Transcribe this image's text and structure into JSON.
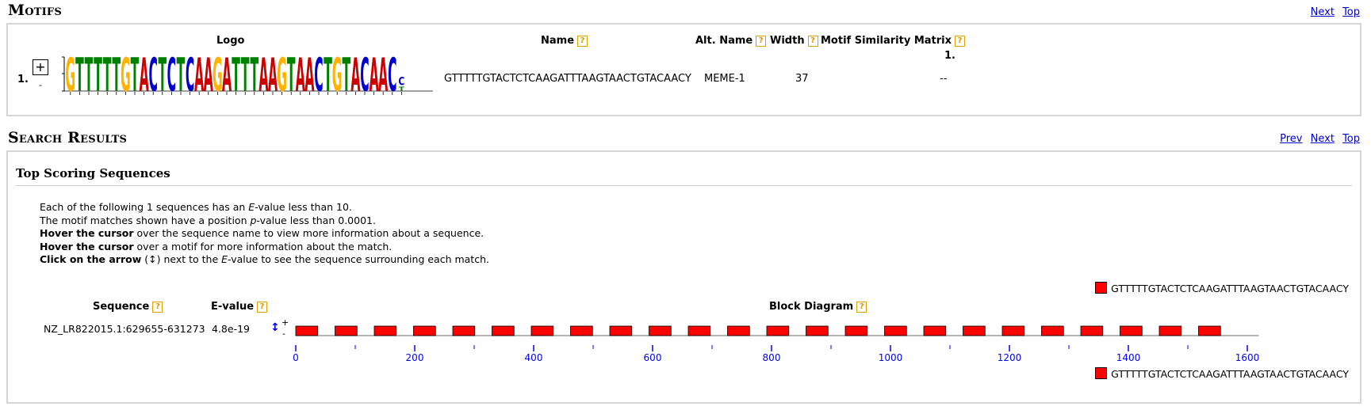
{
  "motifs": {
    "title": "Motifs",
    "nav": {
      "next": "Next",
      "top": "Top"
    },
    "headers": {
      "logo": "Logo",
      "name": "Name",
      "alt_name": "Alt. Name",
      "width": "Width",
      "similarity": "Motif Similarity Matrix",
      "similarity_col": "1."
    },
    "rows": [
      {
        "index": "1.",
        "expand_symbol": "+",
        "sub_symbol": "-",
        "logo_letters": "GTTTTTGTACTCTCAAGATTTAAGTAACTGTACAAC",
        "logo_last_top": "C",
        "logo_last_bottom": "T",
        "name": "GTTTTTGTACTCTCAAGATTTAAGTAACTGTACAACY",
        "alt_name": "MEME-1",
        "width": "37",
        "similarity": "--"
      }
    ]
  },
  "search": {
    "title": "Search Results",
    "nav": {
      "prev": "Prev",
      "next": "Next",
      "top": "Top"
    },
    "subtitle": "Top Scoring Sequences",
    "desc": {
      "l1_a": "Each of the following 1 sequences has an ",
      "l1_em": "E",
      "l1_b": "-value less than 10.",
      "l2_a": "The motif matches shown have a position ",
      "l2_em": "p",
      "l2_b": "-value less than 0.0001.",
      "l3_bold": "Hover the cursor",
      "l3_rest": " over the sequence name to view more information about a sequence.",
      "l4_bold": "Hover the cursor",
      "l4_rest": " over a motif for more information about the match.",
      "l5_bold": "Click on the arrow",
      "l5_rest": " (↕) next to the ",
      "l5_em": "E",
      "l5_end": "-value to see the sequence surrounding each match."
    },
    "headers": {
      "sequence": "Sequence",
      "evalue": "E-value",
      "block": "Block Diagram"
    },
    "legend_label": "GTTTTTGTACTCTCAAGATTTAAGTAACTGTACAACY",
    "result": {
      "sequence": "NZ_LR822015.1:629655-631273",
      "evalue": "4.8e-19",
      "arrow": "↕",
      "plus": "+",
      "minus": "-"
    },
    "colors": {
      "block": "#ff0000",
      "axis": "#0000ff"
    },
    "axis": {
      "min": 0,
      "max": 1600,
      "major_ticks": [
        0,
        200,
        400,
        600,
        800,
        1000,
        1200,
        1400,
        1600
      ],
      "minor_step": 100,
      "sequence_length": 1619,
      "motif_width": 37,
      "sites": [
        0,
        66,
        132,
        198,
        264,
        330,
        396,
        462,
        528,
        594,
        660,
        726,
        792,
        858,
        924,
        990,
        1056,
        1122,
        1188,
        1254,
        1320,
        1386,
        1452,
        1518
      ]
    }
  }
}
